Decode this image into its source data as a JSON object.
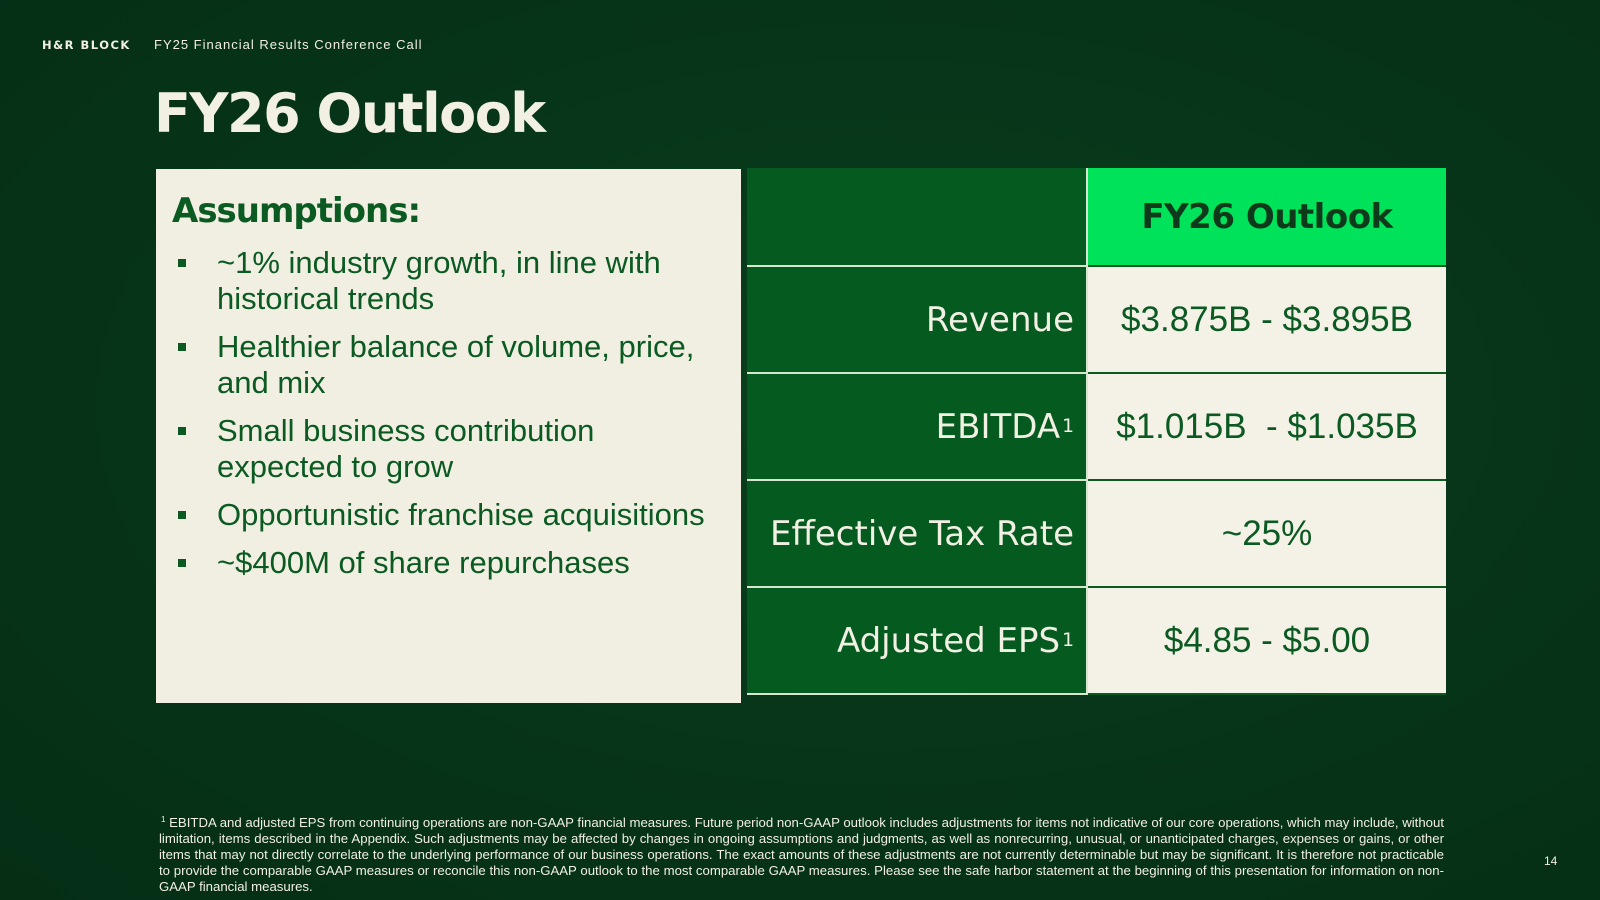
{
  "header": {
    "brand": "H&R BLOCK",
    "subtitle": "FY25 Financial Results Conference Call"
  },
  "page_title": "FY26 Outlook",
  "assumptions": {
    "heading": "Assumptions:",
    "items": [
      "~1% industry growth, in line with historical trends",
      "Healthier balance of volume, price, and mix",
      "Small business contribution expected to grow",
      "Opportunistic franchise acquisitions",
      "~$400M of share repurchases"
    ]
  },
  "outlook_table": {
    "header_label": "",
    "header_value": "FY26 Outlook",
    "rows": [
      {
        "label": "Revenue",
        "footnote": "",
        "value": "$3.875B - $3.895B"
      },
      {
        "label": "EBITDA",
        "footnote": "1",
        "value": "$1.015B  - $1.035B"
      },
      {
        "label": "Effective Tax Rate",
        "footnote": "",
        "value": "~25%"
      },
      {
        "label": "Adjusted EPS",
        "footnote": "1",
        "value": "$4.85 - $5.00"
      }
    ]
  },
  "footnote": {
    "marker": "1",
    "text": "EBITDA and adjusted EPS from continuing operations are non-GAAP financial measures. Future period non-GAAP outlook includes adjustments for items not indicative of our core operations, which may include, without limitation, items described in the Appendix. Such adjustments may be affected by changes in ongoing assumptions and judgments, as well as nonrecurring, unusual, or unanticipated charges, expenses or gains, or other items that may not directly correlate to the underlying performance of our business operations. The exact amounts of these adjustments are not currently determinable but may be significant. It is therefore not practicable to provide the comparable GAAP measures or reconcile this non-GAAP outlook to the most comparable GAAP measures. Please see the safe harbor statement at the beginning of this presentation for information on non-GAAP financial measures."
  },
  "page_number": "14",
  "colors": {
    "background": "#07361a",
    "brand_green": "#0a5a22",
    "accent_green": "#00e25a",
    "cream": "#f2efe3"
  }
}
